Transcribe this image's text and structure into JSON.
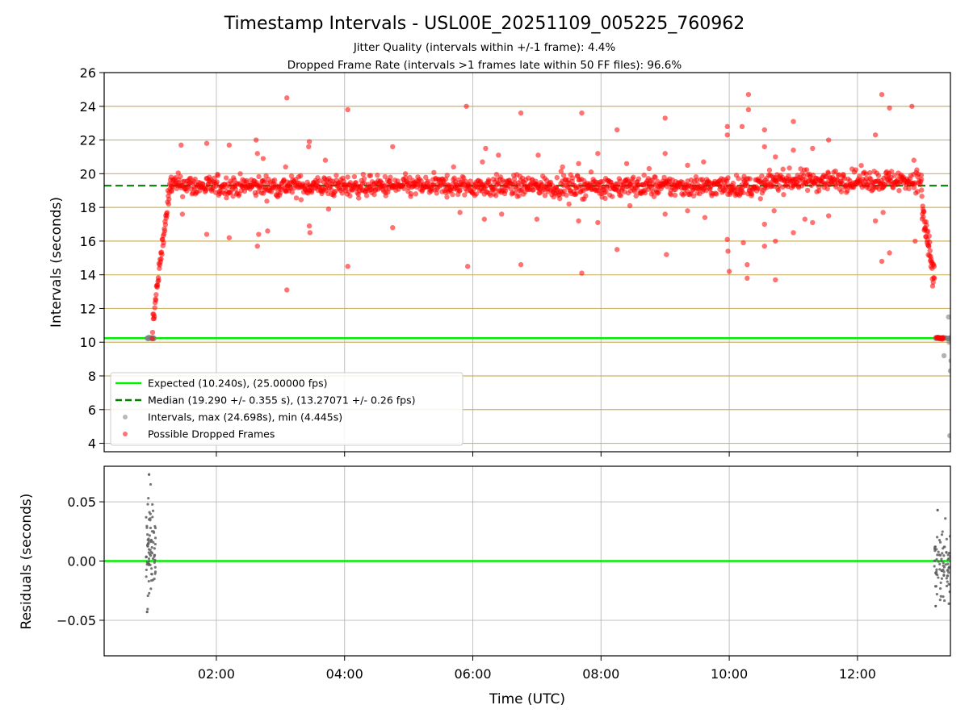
{
  "chart_data": {
    "type": "scatter",
    "title": "Timestamp Intervals - USL00E_20251109_005225_760962",
    "subtitle_lines": [
      "Jitter Quality (intervals within +/-1 frame): 4.4%",
      "Dropped Frame Rate (intervals >1 frames late within 50 FF files): 96.6%"
    ],
    "colors": {
      "expected": "#00ee00",
      "median": "#008000",
      "intervals": "#808080",
      "dropped": "#ff0000",
      "gridline": "#ccb366"
    },
    "top_panel": {
      "ylabel": "Intervals (seconds)",
      "ylim": [
        3.5,
        26
      ],
      "yticks": [
        "4",
        "6",
        "8",
        "10",
        "12",
        "14",
        "16",
        "18",
        "20",
        "22",
        "24",
        "26"
      ],
      "xlim_hours": [
        0.25,
        13.45
      ],
      "expected_interval": 10.24,
      "median_interval": 19.29,
      "legend_position": "lower-left",
      "legend": [
        {
          "label": "Expected (10.240s), (25.00000 fps)",
          "kind": "line-solid"
        },
        {
          "label": "Median (19.290 +/- 0.355 s), (13.27071 +/- 0.26 fps)",
          "kind": "line-dashed"
        },
        {
          "label": "Intervals, max (24.698s), min (4.445s)",
          "kind": "dot-gray"
        },
        {
          "label": "Possible Dropped Frames",
          "kind": "dot-red"
        }
      ],
      "dense_band": {
        "start_hours": 1.3,
        "end_hours": 13.0,
        "center": 19.25,
        "spread": 0.55,
        "rise_segment": {
          "start_hours": 1.0,
          "end_hours": 1.3,
          "from": 10.4,
          "to": 19.6
        },
        "fall_segment": {
          "start_hours": 13.0,
          "end_hours": 13.2,
          "from": 18.2,
          "to": 13.5
        }
      },
      "gray_cluster_start": {
        "start_hours": 0.9,
        "end_hours": 1.05,
        "value": 10.24
      },
      "gray_cluster_end": {
        "start_hours": 13.2,
        "end_hours": 13.45,
        "value": 10.24
      },
      "gray_outliers": [
        [
          13.35,
          9.2
        ],
        [
          13.45,
          8.3
        ],
        [
          13.42,
          11.5
        ],
        [
          13.44,
          4.45
        ],
        [
          13.46,
          8.9
        ],
        [
          13.43,
          10.0
        ]
      ],
      "dropped_outliers": [
        [
          1.45,
          21.7
        ],
        [
          1.47,
          17.6
        ],
        [
          1.85,
          21.8
        ],
        [
          1.85,
          16.4
        ],
        [
          2.2,
          21.7
        ],
        [
          2.2,
          16.2
        ],
        [
          2.62,
          22.0
        ],
        [
          2.64,
          21.2
        ],
        [
          2.64,
          15.7
        ],
        [
          2.66,
          16.4
        ],
        [
          2.8,
          16.6
        ],
        [
          2.73,
          20.9
        ],
        [
          3.1,
          24.5
        ],
        [
          3.1,
          13.1
        ],
        [
          3.08,
          20.4
        ],
        [
          3.45,
          21.9
        ],
        [
          3.44,
          21.6
        ],
        [
          3.45,
          16.9
        ],
        [
          3.46,
          16.5
        ],
        [
          3.7,
          20.8
        ],
        [
          3.75,
          17.9
        ],
        [
          4.05,
          23.8
        ],
        [
          4.05,
          14.5
        ],
        [
          4.75,
          21.6
        ],
        [
          4.75,
          16.8
        ],
        [
          5.6,
          19.9
        ],
        [
          5.7,
          20.4
        ],
        [
          5.9,
          24.0
        ],
        [
          5.92,
          14.5
        ],
        [
          5.8,
          17.7
        ],
        [
          6.15,
          20.7
        ],
        [
          6.2,
          21.5
        ],
        [
          6.4,
          21.1
        ],
        [
          6.45,
          17.6
        ],
        [
          6.18,
          17.3
        ],
        [
          6.75,
          23.6
        ],
        [
          6.75,
          14.6
        ],
        [
          7.02,
          21.1
        ],
        [
          7.0,
          17.3
        ],
        [
          7.4,
          20.4
        ],
        [
          7.5,
          18.2
        ],
        [
          7.65,
          20.6
        ],
        [
          7.7,
          23.6
        ],
        [
          7.7,
          14.1
        ],
        [
          7.65,
          17.2
        ],
        [
          7.95,
          21.2
        ],
        [
          7.95,
          17.1
        ],
        [
          8.25,
          22.6
        ],
        [
          8.25,
          15.5
        ],
        [
          8.45,
          18.1
        ],
        [
          8.4,
          20.6
        ],
        [
          8.75,
          20.3
        ],
        [
          9.0,
          21.2
        ],
        [
          9.0,
          23.3
        ],
        [
          9.02,
          15.2
        ],
        [
          9.0,
          17.6
        ],
        [
          9.35,
          20.5
        ],
        [
          9.35,
          17.8
        ],
        [
          9.6,
          20.7
        ],
        [
          9.62,
          17.4
        ],
        [
          9.97,
          22.8
        ],
        [
          9.97,
          22.3
        ],
        [
          9.97,
          16.1
        ],
        [
          9.98,
          15.4
        ],
        [
          10.0,
          14.2
        ],
        [
          10.2,
          22.8
        ],
        [
          10.22,
          15.9
        ],
        [
          10.3,
          24.7
        ],
        [
          10.3,
          23.8
        ],
        [
          10.28,
          14.6
        ],
        [
          10.28,
          13.8
        ],
        [
          10.55,
          22.6
        ],
        [
          10.55,
          21.6
        ],
        [
          10.55,
          17.0
        ],
        [
          10.55,
          15.7
        ],
        [
          10.72,
          21.0
        ],
        [
          10.72,
          16.0
        ],
        [
          10.72,
          13.7
        ],
        [
          10.7,
          17.8
        ],
        [
          11.0,
          21.4
        ],
        [
          11.0,
          23.1
        ],
        [
          11.0,
          16.5
        ],
        [
          11.18,
          17.3
        ],
        [
          11.3,
          21.5
        ],
        [
          11.3,
          17.1
        ],
        [
          11.55,
          22.0
        ],
        [
          11.55,
          17.5
        ],
        [
          12.28,
          22.3
        ],
        [
          12.28,
          17.2
        ],
        [
          12.38,
          24.7
        ],
        [
          12.38,
          14.8
        ],
        [
          12.5,
          23.9
        ],
        [
          12.5,
          15.3
        ],
        [
          12.4,
          17.7
        ],
        [
          12.85,
          24.0
        ],
        [
          12.88,
          20.8
        ],
        [
          12.9,
          16.0
        ]
      ]
    },
    "bottom_panel": {
      "ylabel": "Residuals (seconds)",
      "ylim": [
        -0.08,
        0.08
      ],
      "yticks": [
        "−0.05",
        "0.00",
        "0.05"
      ],
      "ytick_values": [
        -0.05,
        0.0,
        0.05
      ],
      "clusters": [
        {
          "start_hours": 0.9,
          "end_hours": 1.05,
          "min": -0.043,
          "max": 0.073
        },
        {
          "start_hours": 13.2,
          "end_hours": 13.45,
          "min": -0.038,
          "max": 0.043
        }
      ]
    },
    "xlabel": "Time (UTC)",
    "xticks": [
      "02:00",
      "04:00",
      "06:00",
      "08:00",
      "10:00",
      "12:00"
    ],
    "xtick_hours": [
      2,
      4,
      6,
      8,
      10,
      12
    ]
  }
}
